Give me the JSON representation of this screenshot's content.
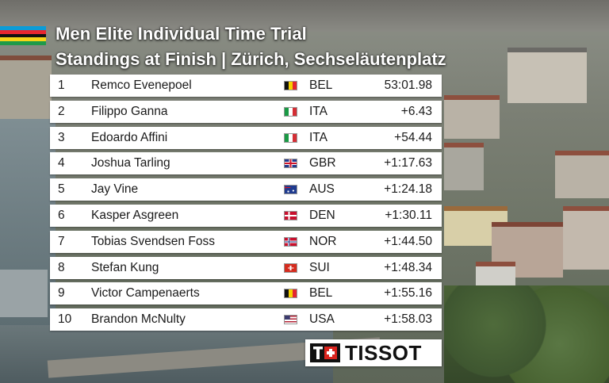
{
  "header": {
    "title": "Men Elite Individual Time Trial",
    "subtitle": "Standings at Finish | Zürich, Sechseläutenplatz",
    "stripe_colors": [
      "#0a9cd8",
      "#e8262f",
      "#111111",
      "#f7d417",
      "#1e9a49"
    ]
  },
  "standings": [
    {
      "rank": "1",
      "rider": "Remco Evenepoel",
      "flag": "belgium-flag-icon",
      "nation": "BEL",
      "time": "53:01.98"
    },
    {
      "rank": "2",
      "rider": "Filippo Ganna",
      "flag": "italy-flag-icon",
      "nation": "ITA",
      "time": "+6.43"
    },
    {
      "rank": "3",
      "rider": "Edoardo Affini",
      "flag": "italy-flag-icon",
      "nation": "ITA",
      "time": "+54.44"
    },
    {
      "rank": "4",
      "rider": "Joshua Tarling",
      "flag": "uk-flag-icon",
      "nation": "GBR",
      "time": "+1:17.63"
    },
    {
      "rank": "5",
      "rider": "Jay Vine",
      "flag": "australia-flag-icon",
      "nation": "AUS",
      "time": "+1:24.18"
    },
    {
      "rank": "6",
      "rider": "Kasper Asgreen",
      "flag": "denmark-flag-icon",
      "nation": "DEN",
      "time": "+1:30.11"
    },
    {
      "rank": "7",
      "rider": "Tobias Svendsen Foss",
      "flag": "norway-flag-icon",
      "nation": "NOR",
      "time": "+1:44.50"
    },
    {
      "rank": "8",
      "rider": "Stefan Kung",
      "flag": "switzerland-flag-icon",
      "nation": "SUI",
      "time": "+1:48.34"
    },
    {
      "rank": "9",
      "rider": "Victor Campenaerts",
      "flag": "belgium-flag-icon",
      "nation": "BEL",
      "time": "+1:55.16"
    },
    {
      "rank": "10",
      "rider": "Brandon McNulty",
      "flag": "usa-flag-icon",
      "nation": "USA",
      "time": "+1:58.03"
    }
  ],
  "sponsor": {
    "name": "TISSOT",
    "logo_icon": "tissot-logo-icon"
  }
}
